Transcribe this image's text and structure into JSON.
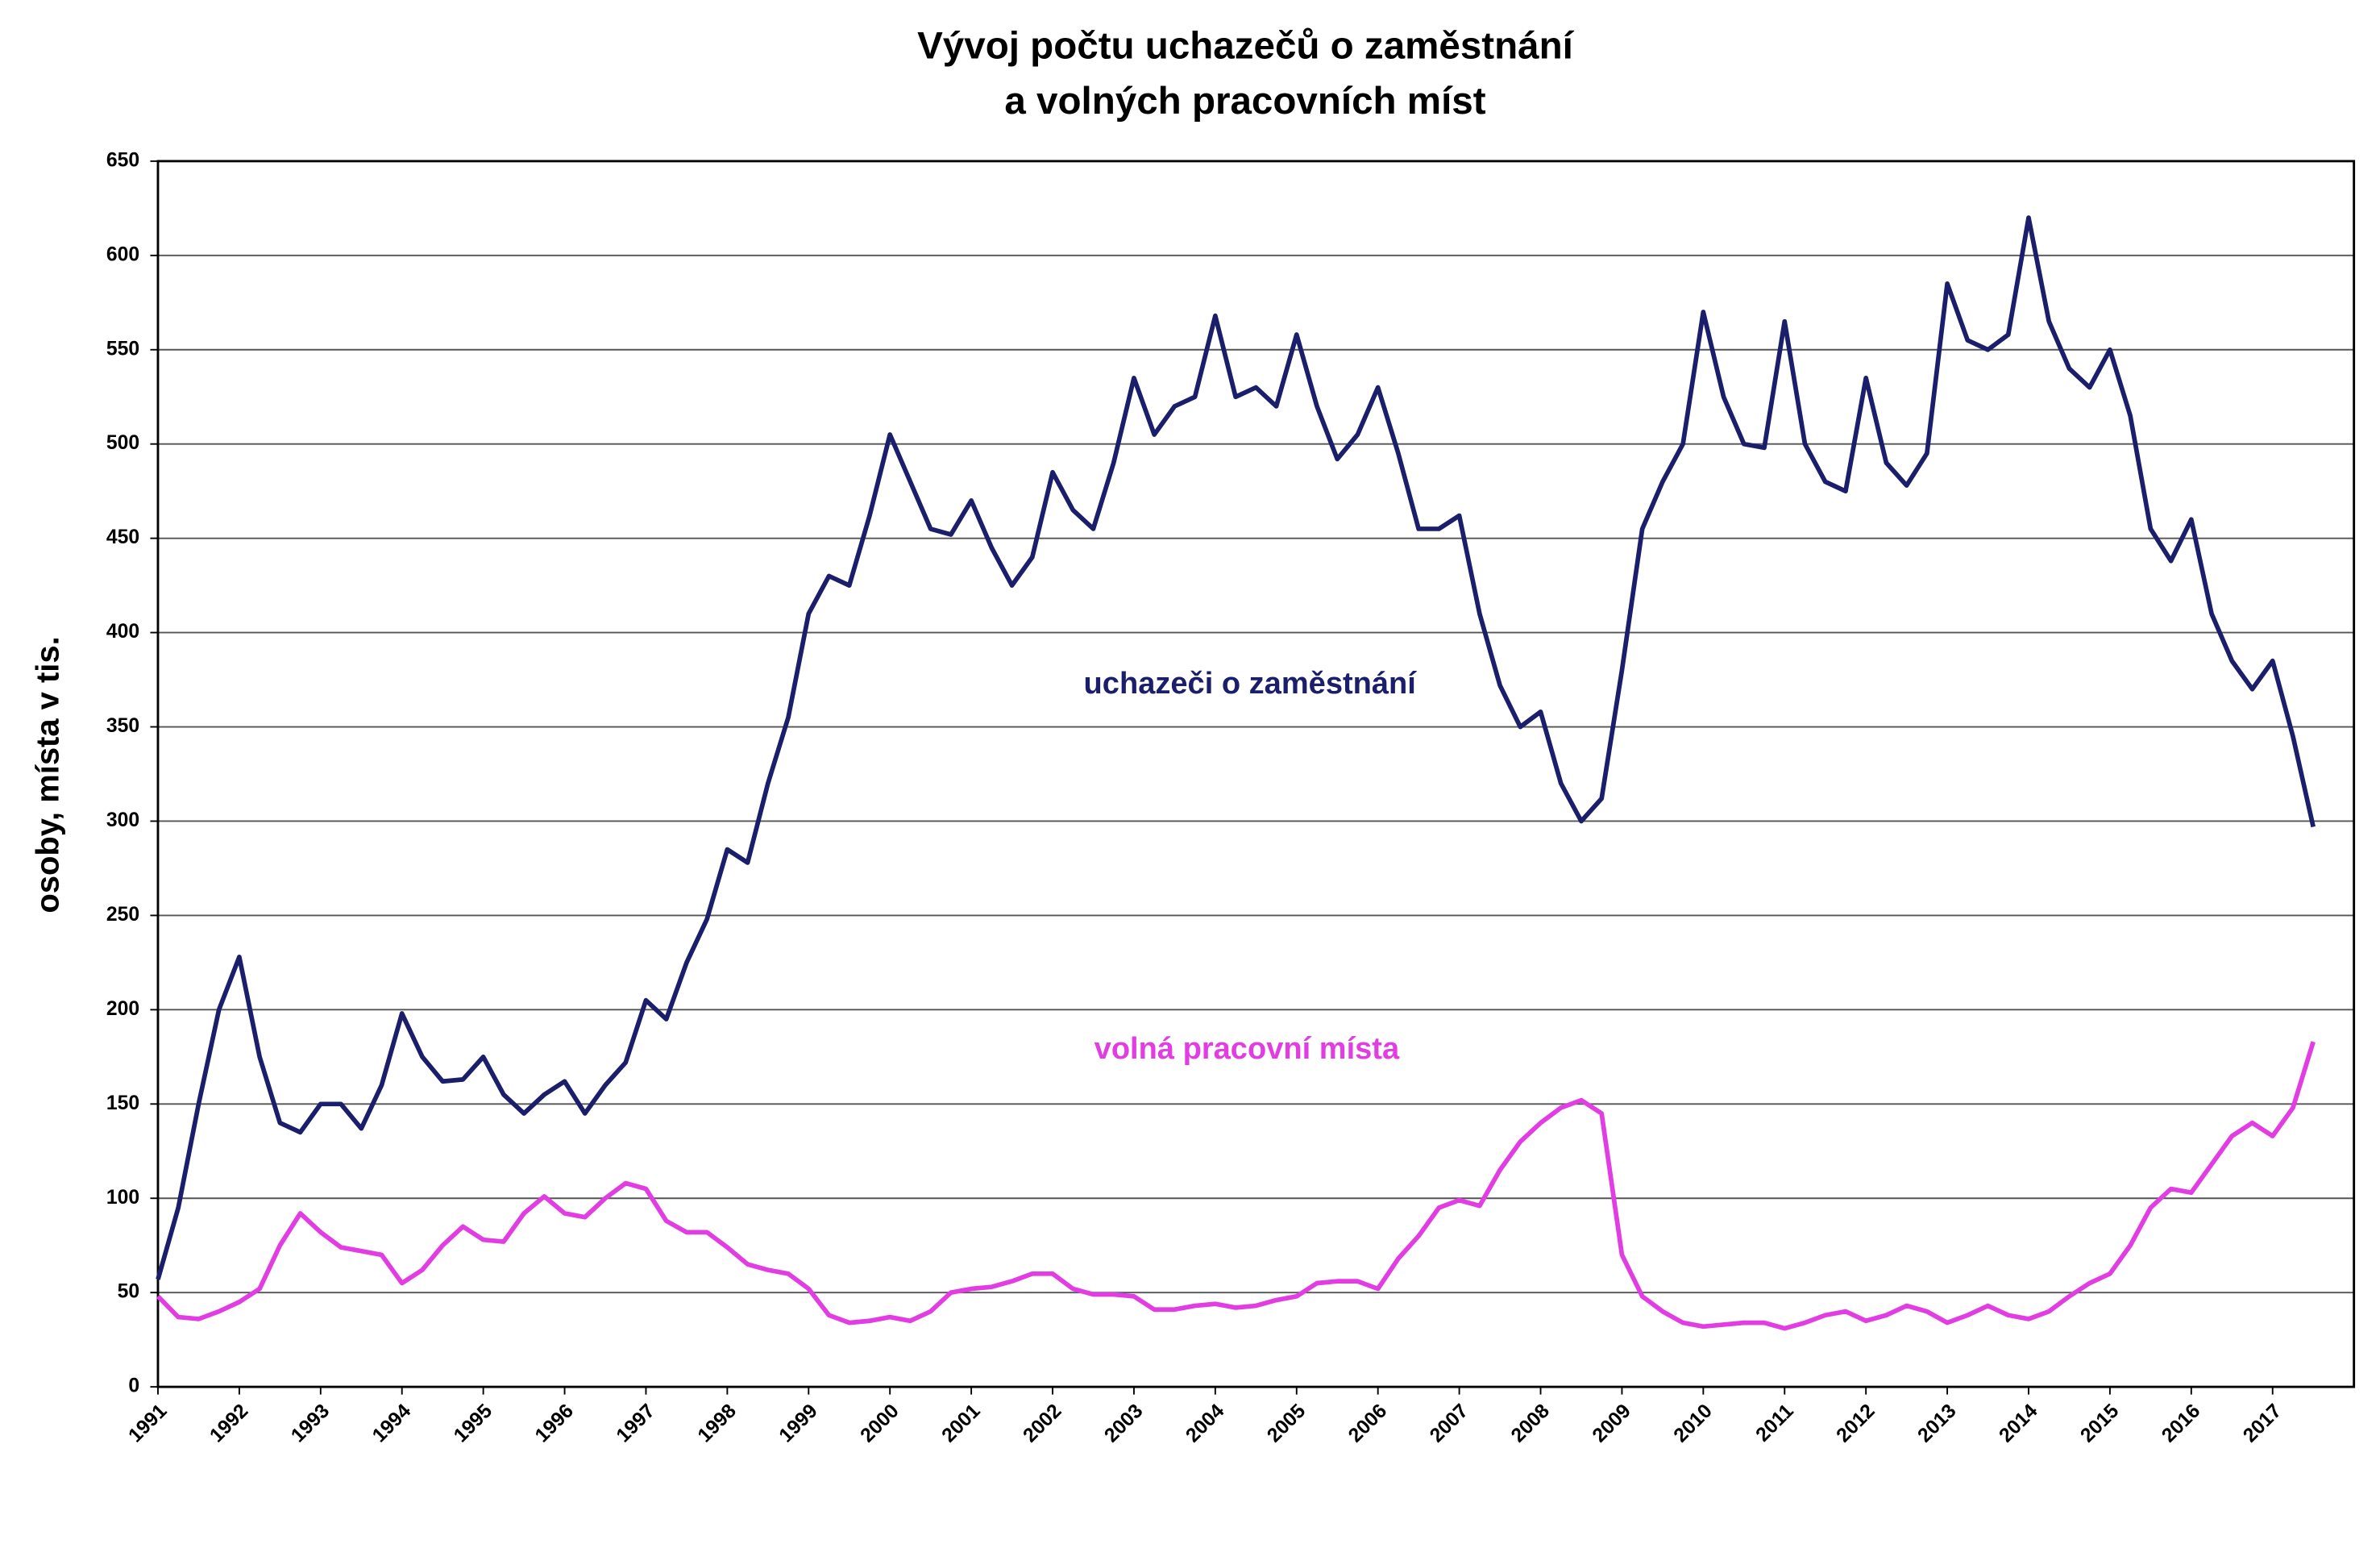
{
  "chart_data": {
    "type": "line",
    "title": [
      "Vývoj počtu uchazečů o zaměstnání",
      "a volných pracovních míst"
    ],
    "y_label": "osoby, místa v tis.",
    "xlim": [
      1991,
      2018
    ],
    "ylim": [
      0,
      650
    ],
    "xticks": [
      1991,
      1992,
      1993,
      1994,
      1995,
      1996,
      1997,
      1998,
      1999,
      2000,
      2001,
      2002,
      2003,
      2004,
      2005,
      2006,
      2007,
      2008,
      2009,
      2010,
      2011,
      2012,
      2013,
      2014,
      2015,
      2016,
      2017
    ],
    "yticks": [
      0,
      50,
      100,
      150,
      200,
      250,
      300,
      350,
      400,
      450,
      500,
      550,
      600,
      650
    ],
    "grid": true,
    "x": [
      1991,
      1991.25,
      1991.5,
      1991.75,
      1992,
      1992.25,
      1992.5,
      1992.75,
      1993,
      1993.25,
      1993.5,
      1993.75,
      1994,
      1994.25,
      1994.5,
      1994.75,
      1995,
      1995.25,
      1995.5,
      1995.75,
      1996,
      1996.25,
      1996.5,
      1996.75,
      1997,
      1997.25,
      1997.5,
      1997.75,
      1998,
      1998.25,
      1998.5,
      1998.75,
      1999,
      1999.25,
      1999.5,
      1999.75,
      2000,
      2000.25,
      2000.5,
      2000.75,
      2001,
      2001.25,
      2001.5,
      2001.75,
      2002,
      2002.25,
      2002.5,
      2002.75,
      2003,
      2003.25,
      2003.5,
      2003.75,
      2004,
      2004.25,
      2004.5,
      2004.75,
      2005,
      2005.25,
      2005.5,
      2005.75,
      2006,
      2006.25,
      2006.5,
      2006.75,
      2007,
      2007.25,
      2007.5,
      2007.75,
      2008,
      2008.25,
      2008.5,
      2008.75,
      2009,
      2009.25,
      2009.5,
      2009.75,
      2010,
      2010.25,
      2010.5,
      2010.75,
      2011,
      2011.25,
      2011.5,
      2011.75,
      2012,
      2012.25,
      2012.5,
      2012.75,
      2013,
      2013.25,
      2013.5,
      2013.75,
      2014,
      2014.25,
      2014.5,
      2014.75,
      2015,
      2015.25,
      2015.5,
      2015.75,
      2016,
      2016.25,
      2016.5,
      2016.75,
      2017,
      2017.25,
      2017.5
    ],
    "series": [
      {
        "name": "uchazeči o zaměstnání",
        "color": "#1b1f6b",
        "values": [
          57,
          95,
          150,
          200,
          228,
          175,
          140,
          135,
          150,
          150,
          137,
          160,
          198,
          175,
          162,
          163,
          175,
          155,
          145,
          155,
          162,
          145,
          160,
          172,
          205,
          195,
          225,
          248,
          285,
          278,
          320,
          355,
          410,
          430,
          425,
          462,
          505,
          480,
          455,
          452,
          470,
          445,
          425,
          440,
          485,
          465,
          455,
          490,
          535,
          505,
          520,
          525,
          568,
          525,
          530,
          520,
          558,
          520,
          492,
          505,
          530,
          495,
          455,
          455,
          462,
          410,
          372,
          350,
          358,
          320,
          300,
          312,
          380,
          455,
          480,
          500,
          570,
          525,
          500,
          498,
          565,
          500,
          480,
          475,
          535,
          490,
          478,
          495,
          585,
          555,
          550,
          558,
          620,
          565,
          540,
          530,
          550,
          515,
          455,
          438,
          460,
          410,
          385,
          370,
          385,
          345,
          297
        ]
      },
      {
        "name": "volná pracovní místa",
        "color": "#e23de2",
        "values": [
          48,
          37,
          36,
          40,
          45,
          52,
          75,
          92,
          82,
          74,
          72,
          70,
          55,
          62,
          75,
          85,
          78,
          77,
          92,
          101,
          92,
          90,
          100,
          108,
          105,
          88,
          82,
          82,
          74,
          65,
          62,
          60,
          52,
          38,
          34,
          35,
          37,
          35,
          40,
          50,
          52,
          53,
          56,
          60,
          60,
          52,
          49,
          49,
          48,
          41,
          41,
          43,
          44,
          42,
          43,
          46,
          48,
          55,
          56,
          56,
          52,
          68,
          80,
          95,
          99,
          96,
          115,
          130,
          140,
          148,
          152,
          145,
          70,
          48,
          40,
          34,
          32,
          33,
          34,
          34,
          31,
          34,
          38,
          40,
          35,
          38,
          43,
          40,
          34,
          38,
          43,
          38,
          36,
          40,
          48,
          55,
          60,
          75,
          95,
          105,
          103,
          118,
          133,
          140,
          133,
          148,
          183
        ]
      }
    ]
  }
}
